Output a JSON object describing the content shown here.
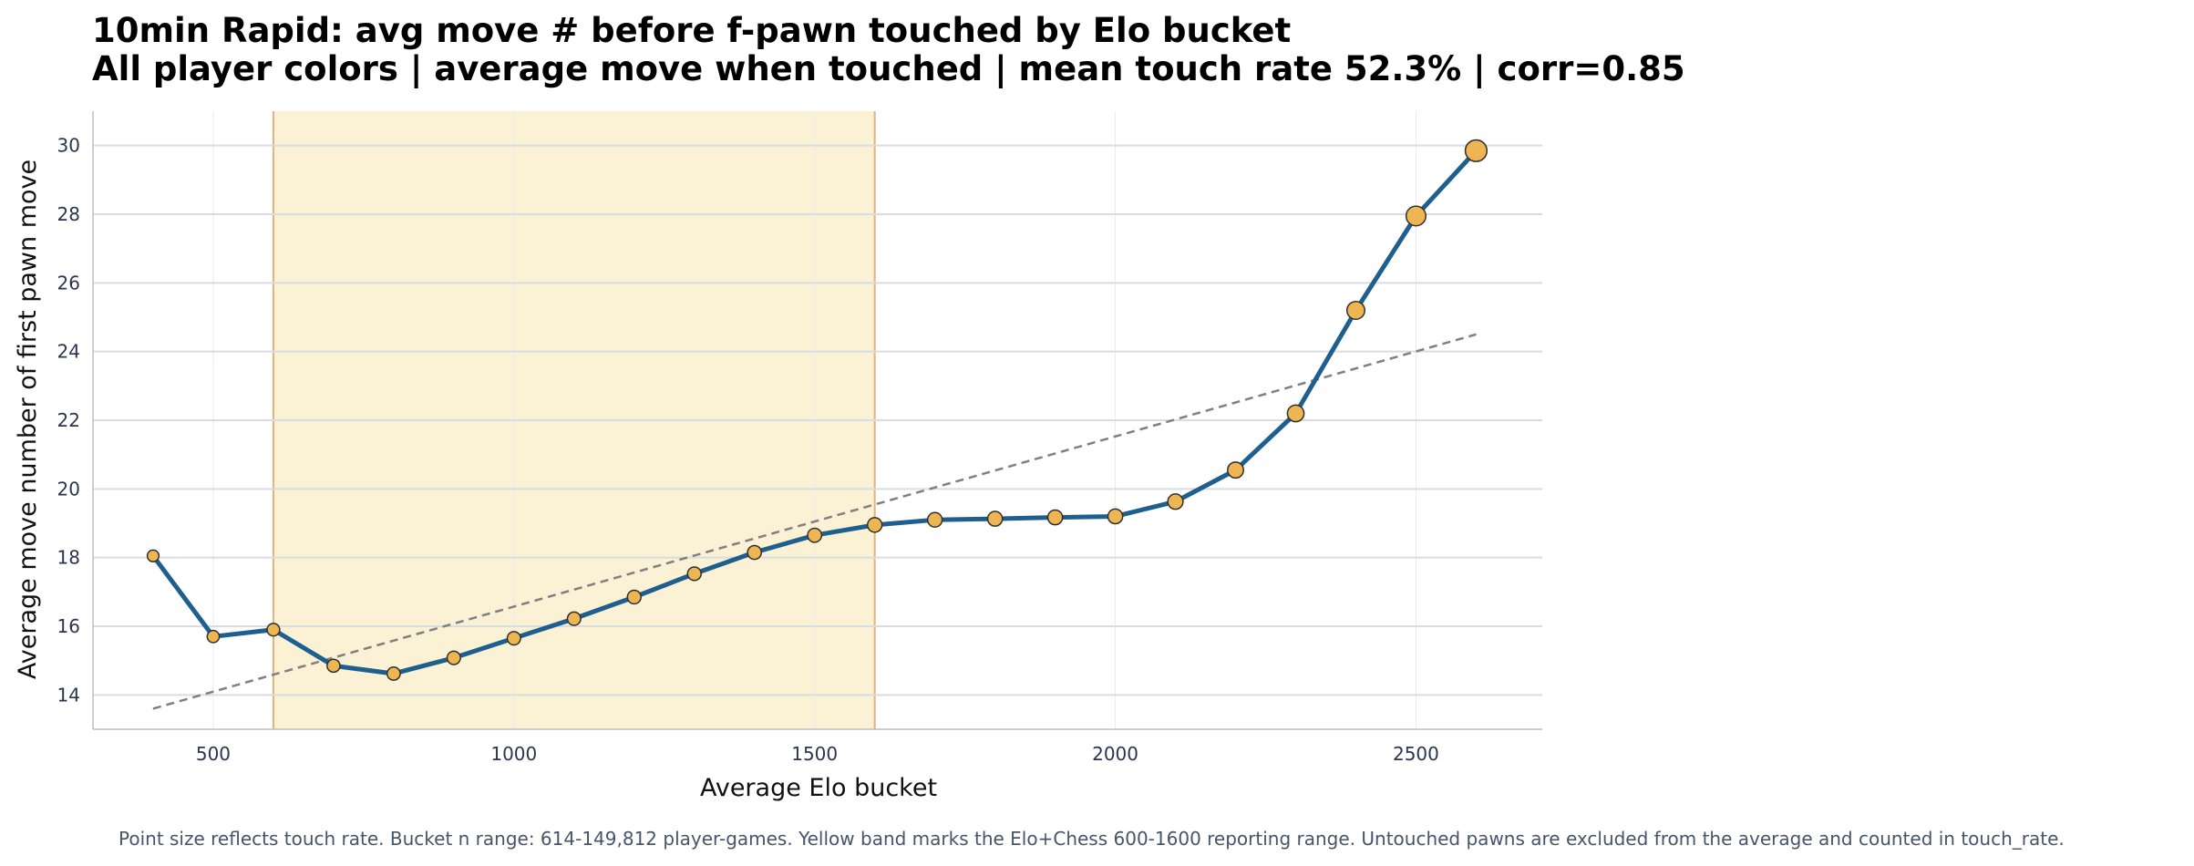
{
  "chart_data": {
    "type": "line",
    "title_lines": [
      "10min Rapid: avg move # before f-pawn touched by Elo bucket",
      "All player colors | average move when touched | mean touch rate 52.3% | corr=0.85"
    ],
    "xlabel": "Average Elo bucket",
    "ylabel": "Average move number of first pawn move",
    "footnote": "Point size reflects touch rate. Bucket n range: 614-149,812 player-games. Yellow band marks the Elo+Chess 600-1600 reporting range. Untouched pawns are excluded from the average and counted in touch_rate.",
    "xlim": [
      300,
      2710
    ],
    "ylim": [
      13.0,
      31.0
    ],
    "x_ticks": [
      500,
      1000,
      1500,
      2000,
      2500
    ],
    "y_ticks": [
      14,
      16,
      18,
      20,
      22,
      24,
      26,
      28,
      30
    ],
    "grid": true,
    "band": {
      "x_start": 600,
      "x_end": 1600,
      "color": "#fbf1d4",
      "edge_color": "#dcb47e"
    },
    "series": [
      {
        "x": [
          400,
          500,
          600,
          700,
          800,
          900,
          1000,
          1100,
          1200,
          1300,
          1400,
          1500,
          1600,
          1700,
          1800,
          1900,
          2000,
          2100,
          2200,
          2300,
          2400,
          2500,
          2600
        ],
        "y": [
          18.05,
          15.7,
          15.9,
          14.85,
          14.62,
          15.08,
          15.65,
          16.22,
          16.85,
          17.53,
          18.15,
          18.65,
          18.95,
          19.1,
          19.13,
          19.17,
          19.2,
          19.63,
          20.55,
          22.2,
          25.2,
          27.95,
          29.85
        ],
        "touch_rate": [
          0.48,
          0.5,
          0.52,
          0.53,
          0.54,
          0.55,
          0.55,
          0.55,
          0.56,
          0.56,
          0.57,
          0.58,
          0.6,
          0.6,
          0.61,
          0.61,
          0.61,
          0.63,
          0.66,
          0.69,
          0.74,
          0.82,
          0.9
        ],
        "line_color": "#1e5f8e",
        "marker_color": "#eeb653"
      }
    ],
    "trendline": {
      "x": [
        400,
        2600
      ],
      "y": [
        13.6,
        24.5
      ],
      "color": "#808080",
      "style": "dashed"
    }
  }
}
